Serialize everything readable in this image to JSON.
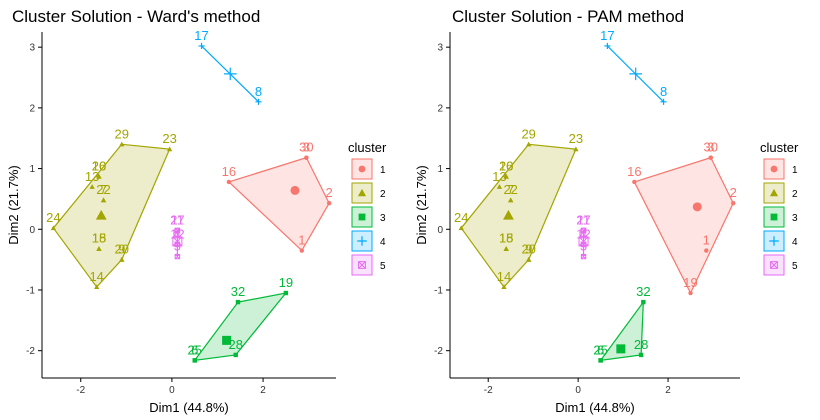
{
  "chart_data": [
    {
      "type": "scatter",
      "title": "Cluster Solution - Ward's method",
      "xlabel": "Dim1 (44.8%)",
      "ylabel": "Dim2 (21.7%)",
      "xlim": [
        -2.85,
        3.6
      ],
      "ylim": [
        -2.45,
        3.25
      ],
      "xticks": [
        -2,
        0,
        2
      ],
      "xtick_labels": [
        "-2",
        "0",
        "2"
      ],
      "yticks": [
        -2,
        -1,
        0,
        1,
        2,
        3
      ],
      "ytick_labels": [
        "-2",
        "-1",
        "0",
        "1",
        "2",
        "3"
      ],
      "grid": false,
      "legend_title": "cluster",
      "clusters": [
        {
          "name": "1",
          "color": "#F8766D",
          "shape": "circle",
          "points": [
            {
              "label": "3",
              "x": 2.95,
              "y": 1.18
            },
            {
              "label": "30",
              "x": 2.95,
              "y": 1.18
            },
            {
              "label": "2",
              "x": 3.45,
              "y": 0.43
            },
            {
              "label": "1",
              "x": 2.85,
              "y": -0.35
            },
            {
              "label": "16",
              "x": 1.25,
              "y": 0.78
            }
          ],
          "hull": [
            "3",
            "2",
            "1",
            "16"
          ],
          "center": {
            "x": 2.7,
            "y": 0.64
          }
        },
        {
          "name": "2",
          "color": "#A3A500",
          "shape": "triangle",
          "points": [
            {
              "label": "29",
              "x": -1.1,
              "y": 1.4
            },
            {
              "label": "23",
              "x": -0.05,
              "y": 1.32
            },
            {
              "label": "26",
              "x": -1.6,
              "y": 0.87
            },
            {
              "label": "10",
              "x": -1.6,
              "y": 0.87
            },
            {
              "label": "13",
              "x": -1.75,
              "y": 0.7
            },
            {
              "label": "22",
              "x": -1.5,
              "y": 0.48
            },
            {
              "label": "7",
              "x": -1.5,
              "y": 0.48
            },
            {
              "label": "24",
              "x": -2.6,
              "y": 0.02
            },
            {
              "label": "15",
              "x": -1.6,
              "y": -0.32
            },
            {
              "label": "18",
              "x": -1.6,
              "y": -0.32
            },
            {
              "label": "20",
              "x": -1.1,
              "y": -0.5
            },
            {
              "label": "9",
              "x": -1.1,
              "y": -0.5
            },
            {
              "label": "14",
              "x": -1.65,
              "y": -0.95
            }
          ],
          "hull": [
            "29",
            "23",
            "9",
            "14",
            "24"
          ],
          "center": {
            "x": -1.55,
            "y": 0.23
          }
        },
        {
          "name": "3",
          "color": "#00BA38",
          "shape": "square",
          "points": [
            {
              "label": "32",
              "x": 1.45,
              "y": -1.2
            },
            {
              "label": "19",
              "x": 2.5,
              "y": -1.05
            },
            {
              "label": "28",
              "x": 1.4,
              "y": -2.07
            },
            {
              "label": "25",
              "x": 0.5,
              "y": -2.16
            },
            {
              "label": "6",
              "x": 0.5,
              "y": -2.16
            }
          ],
          "hull": [
            "32",
            "19",
            "28",
            "25"
          ],
          "center": {
            "x": 1.2,
            "y": -1.83
          }
        },
        {
          "name": "4",
          "color": "#00A9FF",
          "shape": "cross",
          "points": [
            {
              "label": "17",
              "x": 0.65,
              "y": 3.02
            },
            {
              "label": "8",
              "x": 1.9,
              "y": 2.1
            }
          ],
          "hull": [
            "17",
            "8"
          ],
          "center": {
            "x": 1.28,
            "y": 2.56
          }
        },
        {
          "name": "5",
          "color": "#E76BF3",
          "shape": "boxed-x",
          "points": [
            {
              "label": "11",
              "x": 0.12,
              "y": -0.02
            },
            {
              "label": "27",
              "x": 0.12,
              "y": -0.02
            },
            {
              "label": "4",
              "x": 0.12,
              "y": -0.25
            },
            {
              "label": "12",
              "x": 0.12,
              "y": -0.25
            },
            {
              "label": "5",
              "x": 0.12,
              "y": -0.45
            }
          ],
          "hull": [
            "11",
            "5"
          ],
          "center": {
            "x": 0.12,
            "y": -0.2
          }
        }
      ]
    },
    {
      "type": "scatter",
      "title": "Cluster Solution - PAM method",
      "xlabel": "Dim1 (44.8%)",
      "ylabel": "Dim2 (21.7%)",
      "xlim": [
        -2.85,
        3.6
      ],
      "ylim": [
        -2.45,
        3.25
      ],
      "xticks": [
        -2,
        0,
        2
      ],
      "xtick_labels": [
        "-2",
        "0",
        "2"
      ],
      "yticks": [
        -2,
        -1,
        0,
        1,
        2,
        3
      ],
      "ytick_labels": [
        "-2",
        "-1",
        "0",
        "1",
        "2",
        "3"
      ],
      "grid": false,
      "legend_title": "cluster",
      "clusters": [
        {
          "name": "1",
          "color": "#F8766D",
          "shape": "circle",
          "points": [
            {
              "label": "3",
              "x": 2.95,
              "y": 1.18
            },
            {
              "label": "30",
              "x": 2.95,
              "y": 1.18
            },
            {
              "label": "2",
              "x": 3.45,
              "y": 0.43
            },
            {
              "label": "1",
              "x": 2.85,
              "y": -0.35
            },
            {
              "label": "16",
              "x": 1.25,
              "y": 0.78
            },
            {
              "label": "19",
              "x": 2.5,
              "y": -1.05
            }
          ],
          "hull": [
            "3",
            "2",
            "19",
            "16"
          ],
          "center": {
            "x": 2.65,
            "y": 0.37
          }
        },
        {
          "name": "2",
          "color": "#A3A500",
          "shape": "triangle",
          "points": [
            {
              "label": "29",
              "x": -1.1,
              "y": 1.4
            },
            {
              "label": "23",
              "x": -0.05,
              "y": 1.32
            },
            {
              "label": "26",
              "x": -1.6,
              "y": 0.87
            },
            {
              "label": "10",
              "x": -1.6,
              "y": 0.87
            },
            {
              "label": "13",
              "x": -1.75,
              "y": 0.7
            },
            {
              "label": "22",
              "x": -1.5,
              "y": 0.48
            },
            {
              "label": "7",
              "x": -1.5,
              "y": 0.48
            },
            {
              "label": "24",
              "x": -2.6,
              "y": 0.02
            },
            {
              "label": "15",
              "x": -1.6,
              "y": -0.32
            },
            {
              "label": "18",
              "x": -1.6,
              "y": -0.32
            },
            {
              "label": "20",
              "x": -1.1,
              "y": -0.5
            },
            {
              "label": "9",
              "x": -1.1,
              "y": -0.5
            },
            {
              "label": "14",
              "x": -1.65,
              "y": -0.95
            }
          ],
          "hull": [
            "29",
            "23",
            "9",
            "14",
            "24"
          ],
          "center": {
            "x": -1.55,
            "y": 0.23
          }
        },
        {
          "name": "3",
          "color": "#00BA38",
          "shape": "square",
          "points": [
            {
              "label": "32",
              "x": 1.45,
              "y": -1.2
            },
            {
              "label": "28",
              "x": 1.4,
              "y": -2.07
            },
            {
              "label": "25",
              "x": 0.5,
              "y": -2.16
            },
            {
              "label": "6",
              "x": 0.5,
              "y": -2.16
            }
          ],
          "hull": [
            "32",
            "28",
            "25"
          ],
          "center": {
            "x": 0.95,
            "y": -1.97
          }
        },
        {
          "name": "4",
          "color": "#00A9FF",
          "shape": "cross",
          "points": [
            {
              "label": "17",
              "x": 0.65,
              "y": 3.02
            },
            {
              "label": "8",
              "x": 1.9,
              "y": 2.1
            }
          ],
          "hull": [
            "17",
            "8"
          ],
          "center": {
            "x": 1.28,
            "y": 2.56
          }
        },
        {
          "name": "5",
          "color": "#E76BF3",
          "shape": "boxed-x",
          "points": [
            {
              "label": "11",
              "x": 0.12,
              "y": -0.02
            },
            {
              "label": "27",
              "x": 0.12,
              "y": -0.02
            },
            {
              "label": "4",
              "x": 0.12,
              "y": -0.25
            },
            {
              "label": "12",
              "x": 0.12,
              "y": -0.25
            },
            {
              "label": "5",
              "x": 0.12,
              "y": -0.45
            }
          ],
          "hull": [
            "11",
            "5"
          ],
          "center": {
            "x": 0.12,
            "y": -0.2
          }
        }
      ]
    }
  ]
}
